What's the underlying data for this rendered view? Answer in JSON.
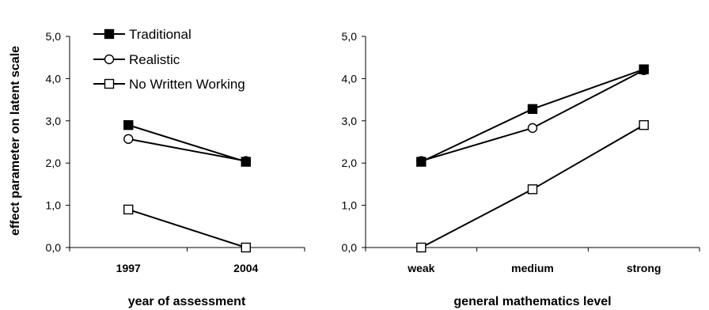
{
  "y_axis_title": "effect parameter on latent scale",
  "chart_data": [
    {
      "type": "line",
      "xlabel": "year of assessment",
      "ylabel": "effect parameter on latent scale",
      "categories": [
        "1997",
        "2004"
      ],
      "ylim": [
        0,
        5
      ],
      "yticks": [
        "0,0",
        "1,0",
        "2,0",
        "3,0",
        "4,0",
        "5,0"
      ],
      "grid": false,
      "legend": "top-left",
      "series": [
        {
          "name": "Traditional",
          "marker": "filled-square",
          "values": [
            2.9,
            2.03
          ]
        },
        {
          "name": "Realistic",
          "marker": "open-circle",
          "values": [
            2.57,
            2.05
          ]
        },
        {
          "name": "No Written Working",
          "marker": "open-square",
          "values": [
            0.9,
            0.0
          ]
        }
      ]
    },
    {
      "type": "line",
      "xlabel": "general mathematics level",
      "categories": [
        "weak",
        "medium",
        "strong"
      ],
      "ylim": [
        0,
        5
      ],
      "yticks": [
        "0,0",
        "1,0",
        "2,0",
        "3,0",
        "4,0",
        "5,0"
      ],
      "grid": false,
      "series": [
        {
          "name": "Traditional",
          "marker": "filled-square",
          "values": [
            2.03,
            3.28,
            4.22
          ]
        },
        {
          "name": "Realistic",
          "marker": "open-circle",
          "values": [
            2.05,
            2.83,
            4.2
          ]
        },
        {
          "name": "No Written Working",
          "marker": "open-square",
          "values": [
            0.0,
            1.38,
            2.9
          ]
        }
      ]
    }
  ],
  "colors": {
    "line": "#000000",
    "marker_fill": "#000000",
    "marker_open": "#ffffff"
  }
}
